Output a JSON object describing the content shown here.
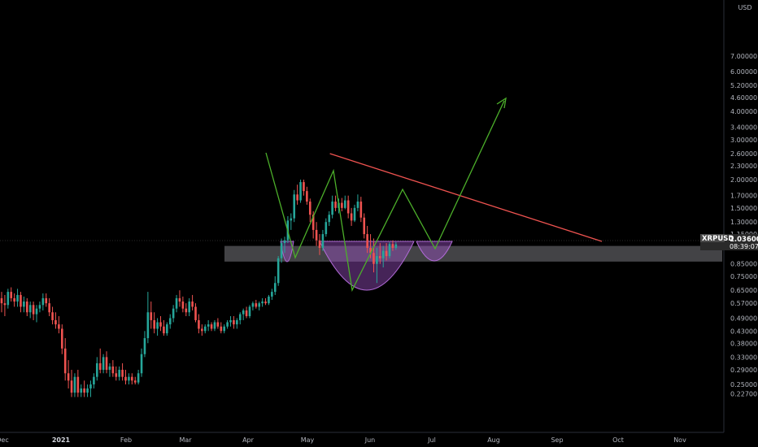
{
  "chart_data": {
    "type": "candlestick",
    "symbol": "XRPUSD",
    "currency_label": "USD",
    "scale": "log",
    "grid": false,
    "last_price_label": "1.03600",
    "countdown_label": "08:39:07",
    "x_ticks": [
      "Dec",
      "2021",
      "Feb",
      "Mar",
      "Apr",
      "May",
      "Jun",
      "Jul",
      "Aug",
      "Sep",
      "Oct",
      "Nov"
    ],
    "y_ticks": [
      "7.00000",
      "6.00000",
      "5.20000",
      "4.60000",
      "4.00000",
      "3.40000",
      "3.00000",
      "2.60000",
      "2.30000",
      "2.00000",
      "1.70000",
      "1.50000",
      "1.30000",
      "1.15000",
      "0.85000",
      "0.75000",
      "0.65000",
      "0.57000",
      "0.49000",
      "0.43000",
      "0.38000",
      "0.33000",
      "0.29000",
      "0.25000",
      "0.22700"
    ],
    "ylim": [
      0.21,
      7.3
    ],
    "candles_ohlc": [
      [
        0.6,
        0.64,
        0.52,
        0.57
      ],
      [
        0.57,
        0.62,
        0.5,
        0.56
      ],
      [
        0.56,
        0.66,
        0.54,
        0.64
      ],
      [
        0.64,
        0.67,
        0.58,
        0.6
      ],
      [
        0.6,
        0.63,
        0.55,
        0.58
      ],
      [
        0.58,
        0.66,
        0.55,
        0.62
      ],
      [
        0.62,
        0.64,
        0.52,
        0.55
      ],
      [
        0.55,
        0.61,
        0.52,
        0.58
      ],
      [
        0.58,
        0.6,
        0.5,
        0.52
      ],
      [
        0.52,
        0.58,
        0.49,
        0.56
      ],
      [
        0.56,
        0.58,
        0.48,
        0.51
      ],
      [
        0.51,
        0.56,
        0.47,
        0.54
      ],
      [
        0.54,
        0.58,
        0.52,
        0.56
      ],
      [
        0.56,
        0.63,
        0.53,
        0.6
      ],
      [
        0.6,
        0.63,
        0.55,
        0.57
      ],
      [
        0.57,
        0.6,
        0.5,
        0.52
      ],
      [
        0.52,
        0.55,
        0.46,
        0.48
      ],
      [
        0.48,
        0.52,
        0.44,
        0.46
      ],
      [
        0.46,
        0.5,
        0.42,
        0.44
      ],
      [
        0.44,
        0.46,
        0.34,
        0.36
      ],
      [
        0.36,
        0.4,
        0.26,
        0.28
      ],
      [
        0.28,
        0.32,
        0.24,
        0.26
      ],
      [
        0.26,
        0.29,
        0.22,
        0.23
      ],
      [
        0.23,
        0.28,
        0.22,
        0.27
      ],
      [
        0.27,
        0.29,
        0.22,
        0.23
      ],
      [
        0.23,
        0.25,
        0.22,
        0.24
      ],
      [
        0.24,
        0.26,
        0.22,
        0.23
      ],
      [
        0.23,
        0.25,
        0.22,
        0.24
      ],
      [
        0.24,
        0.26,
        0.22,
        0.25
      ],
      [
        0.25,
        0.28,
        0.24,
        0.27
      ],
      [
        0.27,
        0.33,
        0.26,
        0.31
      ],
      [
        0.31,
        0.36,
        0.28,
        0.29
      ],
      [
        0.29,
        0.34,
        0.28,
        0.33
      ],
      [
        0.33,
        0.35,
        0.28,
        0.29
      ],
      [
        0.29,
        0.31,
        0.27,
        0.3
      ],
      [
        0.3,
        0.32,
        0.27,
        0.28
      ],
      [
        0.28,
        0.3,
        0.26,
        0.27
      ],
      [
        0.27,
        0.3,
        0.26,
        0.29
      ],
      [
        0.29,
        0.31,
        0.26,
        0.27
      ],
      [
        0.27,
        0.29,
        0.25,
        0.26
      ],
      [
        0.26,
        0.28,
        0.25,
        0.27
      ],
      [
        0.27,
        0.28,
        0.25,
        0.26
      ],
      [
        0.26,
        0.27,
        0.25,
        0.255
      ],
      [
        0.255,
        0.29,
        0.25,
        0.28
      ],
      [
        0.28,
        0.36,
        0.27,
        0.34
      ],
      [
        0.34,
        0.43,
        0.33,
        0.4
      ],
      [
        0.4,
        0.64,
        0.38,
        0.52
      ],
      [
        0.52,
        0.58,
        0.44,
        0.48
      ],
      [
        0.48,
        0.52,
        0.42,
        0.44
      ],
      [
        0.44,
        0.49,
        0.41,
        0.47
      ],
      [
        0.47,
        0.5,
        0.43,
        0.45
      ],
      [
        0.45,
        0.48,
        0.41,
        0.42
      ],
      [
        0.42,
        0.47,
        0.41,
        0.46
      ],
      [
        0.46,
        0.51,
        0.44,
        0.49
      ],
      [
        0.49,
        0.56,
        0.47,
        0.54
      ],
      [
        0.54,
        0.62,
        0.52,
        0.6
      ],
      [
        0.6,
        0.65,
        0.55,
        0.58
      ],
      [
        0.58,
        0.61,
        0.52,
        0.54
      ],
      [
        0.54,
        0.57,
        0.5,
        0.52
      ],
      [
        0.52,
        0.6,
        0.5,
        0.58
      ],
      [
        0.58,
        0.62,
        0.53,
        0.55
      ],
      [
        0.55,
        0.57,
        0.47,
        0.48
      ],
      [
        0.48,
        0.51,
        0.42,
        0.44
      ],
      [
        0.44,
        0.46,
        0.41,
        0.43
      ],
      [
        0.43,
        0.46,
        0.42,
        0.45
      ],
      [
        0.45,
        0.48,
        0.43,
        0.46
      ],
      [
        0.46,
        0.47,
        0.43,
        0.44
      ],
      [
        0.44,
        0.48,
        0.43,
        0.47
      ],
      [
        0.47,
        0.49,
        0.44,
        0.45
      ],
      [
        0.45,
        0.47,
        0.42,
        0.43
      ],
      [
        0.43,
        0.46,
        0.42,
        0.45
      ],
      [
        0.45,
        0.48,
        0.44,
        0.47
      ],
      [
        0.47,
        0.5,
        0.45,
        0.48
      ],
      [
        0.48,
        0.5,
        0.44,
        0.46
      ],
      [
        0.46,
        0.49,
        0.44,
        0.48
      ],
      [
        0.48,
        0.52,
        0.46,
        0.51
      ],
      [
        0.51,
        0.54,
        0.48,
        0.53
      ],
      [
        0.53,
        0.55,
        0.49,
        0.5
      ],
      [
        0.5,
        0.56,
        0.49,
        0.55
      ],
      [
        0.55,
        0.58,
        0.53,
        0.57
      ],
      [
        0.57,
        0.59,
        0.54,
        0.55
      ],
      [
        0.55,
        0.58,
        0.53,
        0.57
      ],
      [
        0.57,
        0.6,
        0.55,
        0.58
      ],
      [
        0.58,
        0.6,
        0.56,
        0.57
      ],
      [
        0.57,
        0.62,
        0.56,
        0.61
      ],
      [
        0.61,
        0.66,
        0.59,
        0.64
      ],
      [
        0.64,
        0.75,
        0.62,
        0.7
      ],
      [
        0.7,
        0.92,
        0.68,
        0.9
      ],
      [
        0.9,
        1.1,
        0.86,
        1.05
      ],
      [
        1.05,
        1.12,
        0.95,
        1.08
      ],
      [
        1.08,
        1.38,
        1.05,
        1.32
      ],
      [
        1.32,
        1.42,
        1.2,
        1.35
      ],
      [
        1.35,
        1.8,
        1.3,
        1.72
      ],
      [
        1.72,
        1.9,
        1.55,
        1.62
      ],
      [
        1.62,
        2.0,
        1.58,
        1.95
      ],
      [
        1.95,
        2.0,
        1.7,
        1.78
      ],
      [
        1.78,
        1.86,
        1.55,
        1.6
      ],
      [
        1.6,
        1.65,
        1.3,
        1.4
      ],
      [
        1.4,
        1.45,
        1.1,
        1.2
      ],
      [
        1.2,
        1.3,
        1.02,
        1.08
      ],
      [
        1.08,
        1.15,
        0.93,
        1.0
      ],
      [
        1.0,
        1.2,
        0.97,
        1.15
      ],
      [
        1.15,
        1.35,
        1.12,
        1.3
      ],
      [
        1.3,
        1.45,
        1.25,
        1.4
      ],
      [
        1.4,
        1.7,
        1.35,
        1.6
      ],
      [
        1.6,
        1.7,
        1.45,
        1.5
      ],
      [
        1.5,
        1.65,
        1.42,
        1.58
      ],
      [
        1.58,
        1.66,
        1.45,
        1.5
      ],
      [
        1.5,
        1.7,
        1.48,
        1.62
      ],
      [
        1.62,
        1.7,
        1.35,
        1.42
      ],
      [
        1.42,
        1.5,
        1.25,
        1.32
      ],
      [
        1.32,
        1.55,
        1.3,
        1.5
      ],
      [
        1.5,
        1.72,
        1.45,
        1.6
      ],
      [
        1.6,
        1.68,
        1.3,
        1.36
      ],
      [
        1.36,
        1.42,
        1.1,
        1.15
      ],
      [
        1.15,
        1.25,
        0.95,
        1.0
      ],
      [
        1.0,
        1.15,
        0.9,
        0.95
      ],
      [
        0.95,
        1.1,
        0.78,
        0.85
      ],
      [
        0.85,
        1.0,
        0.7,
        0.92
      ],
      [
        0.92,
        1.05,
        0.85,
        0.9
      ],
      [
        0.9,
        1.02,
        0.82,
        0.97
      ],
      [
        0.97,
        1.05,
        0.88,
        0.92
      ],
      [
        0.92,
        1.06,
        0.9,
        1.04
      ],
      [
        1.04,
        1.08,
        0.97,
        1.0
      ],
      [
        1.0,
        1.06,
        0.98,
        1.036
      ]
    ],
    "annotations": {
      "resistance_line": [
        [
          93,
          2.1
        ],
        [
          188,
          1.0
        ]
      ],
      "zigzag_path": [
        [
          93,
          2.05
        ],
        [
          103,
          0.87
        ],
        [
          115,
          1.82
        ],
        [
          122,
          0.67
        ],
        [
          132,
          1.52
        ],
        [
          143,
          0.9
        ],
        [
          183,
          3.4
        ]
      ],
      "support_zone": [
        0.87,
        1.02
      ]
    }
  }
}
